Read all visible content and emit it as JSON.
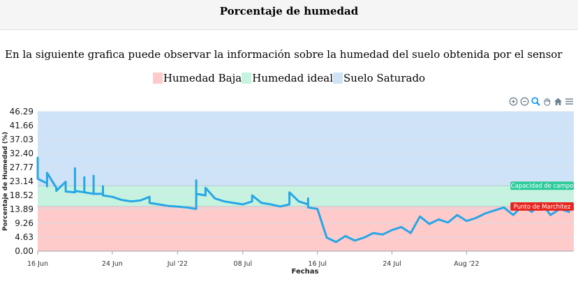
{
  "page": {
    "title": "Porcentaje de humedad",
    "description": "En la siguiente grafica puede observar la información sobre la humedad del suelo obtenida por el sensor"
  },
  "legend": [
    {
      "label": "Humedad Baja",
      "color": "#ffcaca"
    },
    {
      "label": "Humedad ideal",
      "color": "#c6f3df"
    },
    {
      "label": "Suelo Saturado",
      "color": "#cfe3f8"
    }
  ],
  "toolbar": {
    "icons": [
      "zoom-in-icon",
      "zoom-out-icon",
      "zoom-selection-icon",
      "pan-hand-icon",
      "home-reset-icon",
      "menu-icon"
    ]
  },
  "chart_data": {
    "type": "line",
    "ylabel": "Porcentaje de Humedad (%)",
    "xlabel": "Fechas",
    "ylim": [
      0,
      46.29
    ],
    "y_ticks": [
      "46.29",
      "41.66",
      "37.03",
      "32.40",
      "27.77",
      "23.14",
      "18.52",
      "13.89",
      "9.26",
      "4.63",
      "0.00"
    ],
    "x_range": [
      "2022-06-16",
      "2022-08-12"
    ],
    "x_ticks": [
      {
        "date": "2022-06-16",
        "label": "16 Jun"
      },
      {
        "date": "2022-06-24",
        "label": "24 Jun"
      },
      {
        "date": "2022-07-01",
        "label": "Jul '22"
      },
      {
        "date": "2022-07-08",
        "label": "08 Jul"
      },
      {
        "date": "2022-07-16",
        "label": "16 Jul"
      },
      {
        "date": "2022-07-24",
        "label": "24 Jul"
      },
      {
        "date": "2022-08-01",
        "label": "Aug '22"
      }
    ],
    "bands": [
      {
        "name": "Humedad Baja",
        "from": 0,
        "to": 14.8,
        "color": "#ffcaca"
      },
      {
        "name": "Humedad ideal",
        "from": 14.8,
        "to": 21.7,
        "color": "#c6f3df"
      },
      {
        "name": "Suelo Saturado",
        "from": 21.7,
        "to": 46.29,
        "color": "#cfe3f8"
      }
    ],
    "annotations": [
      {
        "label": "Capacidad de campo",
        "y": 21.7,
        "color": "#2fcb9a"
      },
      {
        "label": "Punto de Marchitez",
        "y": 14.8,
        "color": "#e8261f"
      }
    ],
    "series": [
      {
        "color": "#27a6e6",
        "points": [
          [
            "2022-06-16",
            31.0
          ],
          [
            "2022-06-16",
            24.0
          ],
          [
            "2022-06-17",
            22.5
          ],
          [
            "2022-06-17",
            21.5
          ],
          [
            "2022-06-17",
            26.0
          ],
          [
            "2022-06-18",
            21.0
          ],
          [
            "2022-06-18",
            20.0
          ],
          [
            "2022-06-19",
            23.0
          ],
          [
            "2022-06-19",
            19.8
          ],
          [
            "2022-06-20",
            19.5
          ],
          [
            "2022-06-20",
            27.5
          ],
          [
            "2022-06-20",
            20.0
          ],
          [
            "2022-06-21",
            19.5
          ],
          [
            "2022-06-21",
            24.5
          ],
          [
            "2022-06-21",
            19.5
          ],
          [
            "2022-06-22",
            19.0
          ],
          [
            "2022-06-22",
            25.0
          ],
          [
            "2022-06-22",
            19.0
          ],
          [
            "2022-06-23",
            19.0
          ],
          [
            "2022-06-23",
            21.5
          ],
          [
            "2022-06-23",
            18.5
          ],
          [
            "2022-06-24",
            18.0
          ],
          [
            "2022-06-25",
            17.0
          ],
          [
            "2022-06-26",
            16.5
          ],
          [
            "2022-06-27",
            16.8
          ],
          [
            "2022-06-28",
            18.0
          ],
          [
            "2022-06-28",
            16.0
          ],
          [
            "2022-06-29",
            15.5
          ],
          [
            "2022-06-30",
            15.0
          ],
          [
            "2022-07-01",
            14.8
          ],
          [
            "2022-07-02",
            14.5
          ],
          [
            "2022-07-03",
            14.0
          ],
          [
            "2022-07-03",
            17.0
          ],
          [
            "2022-07-03",
            20.0
          ],
          [
            "2022-07-03",
            23.5
          ],
          [
            "2022-07-03",
            19.0
          ],
          [
            "2022-07-04",
            18.5
          ],
          [
            "2022-07-04",
            21.0
          ],
          [
            "2022-07-05",
            17.5
          ],
          [
            "2022-07-06",
            16.5
          ],
          [
            "2022-07-07",
            16.0
          ],
          [
            "2022-07-08",
            15.5
          ],
          [
            "2022-07-09",
            16.5
          ],
          [
            "2022-07-09",
            18.5
          ],
          [
            "2022-07-10",
            16.0
          ],
          [
            "2022-07-11",
            15.5
          ],
          [
            "2022-07-12",
            14.8
          ],
          [
            "2022-07-13",
            15.5
          ],
          [
            "2022-07-13",
            19.5
          ],
          [
            "2022-07-14",
            16.5
          ],
          [
            "2022-07-15",
            15.5
          ],
          [
            "2022-07-15",
            17.5
          ],
          [
            "2022-07-15",
            14.5
          ],
          [
            "2022-07-16",
            14.0
          ],
          [
            "2022-07-17",
            4.5
          ],
          [
            "2022-07-18",
            3.0
          ],
          [
            "2022-07-19",
            5.0
          ],
          [
            "2022-07-20",
            3.5
          ],
          [
            "2022-07-21",
            4.5
          ],
          [
            "2022-07-22",
            6.0
          ],
          [
            "2022-07-23",
            5.5
          ],
          [
            "2022-07-24",
            7.0
          ],
          [
            "2022-07-25",
            8.0
          ],
          [
            "2022-07-26",
            6.0
          ],
          [
            "2022-07-27",
            11.5
          ],
          [
            "2022-07-28",
            9.0
          ],
          [
            "2022-07-29",
            10.5
          ],
          [
            "2022-07-30",
            9.5
          ],
          [
            "2022-07-31",
            12.0
          ],
          [
            "2022-08-01",
            10.0
          ],
          [
            "2022-08-02",
            11.0
          ],
          [
            "2022-08-03",
            12.5
          ],
          [
            "2022-08-04",
            13.5
          ],
          [
            "2022-08-05",
            14.5
          ],
          [
            "2022-08-06",
            12.0
          ],
          [
            "2022-08-07",
            15.0
          ],
          [
            "2022-08-08",
            13.0
          ],
          [
            "2022-08-09",
            16.0
          ],
          [
            "2022-08-10",
            12.0
          ],
          [
            "2022-08-11",
            14.0
          ],
          [
            "2022-08-12",
            13.0
          ]
        ]
      }
    ]
  }
}
